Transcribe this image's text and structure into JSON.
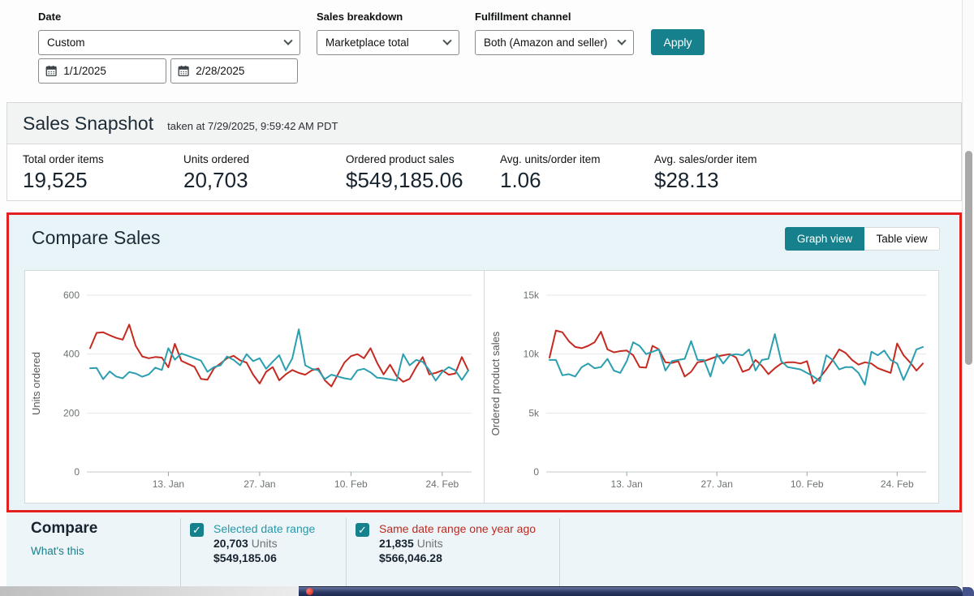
{
  "filters": {
    "date": {
      "label": "Date",
      "value": "Custom",
      "start_date": "1/1/2025",
      "end_date": "2/28/2025"
    },
    "sales_breakdown": {
      "label": "Sales breakdown",
      "value": "Marketplace total"
    },
    "fulfillment_channel": {
      "label": "Fulfillment channel",
      "value": "Both (Amazon and seller)"
    },
    "apply_label": "Apply"
  },
  "snapshot": {
    "title": "Sales Snapshot",
    "taken_at": "taken at 7/29/2025, 9:59:42 AM PDT",
    "metrics": [
      {
        "label": "Total order items",
        "value": "19,525"
      },
      {
        "label": "Units ordered",
        "value": "20,703"
      },
      {
        "label": "Ordered product sales",
        "value": "$549,185.06"
      },
      {
        "label": "Avg. units/order item",
        "value": "1.06"
      },
      {
        "label": "Avg. sales/order item",
        "value": "$28.13"
      }
    ]
  },
  "compare_sales": {
    "title": "Compare Sales",
    "graph_view_label": "Graph view",
    "table_view_label": "Table view"
  },
  "compare_legend": {
    "title": "Compare",
    "whats_this": "What's this",
    "checkmark": "✓",
    "items": [
      {
        "label": "Selected date range",
        "units": "20,703",
        "units_suffix": "Units",
        "sales": "$549,185.06",
        "label_color": "#2798a9",
        "checked": true
      },
      {
        "label": "Same date range one year ago",
        "units": "21,835",
        "units_suffix": "Units",
        "sales": "$566,046.28",
        "label_color": "#bb2a21",
        "checked": true
      }
    ]
  },
  "colors": {
    "accent_teal": "#17808d",
    "series_selected": "#2b9fb0",
    "series_year_ago": "#c52a21",
    "annotation_border": "#e32020",
    "panel_blue_bg": "#e9f4f8"
  },
  "chart_data": [
    {
      "type": "line",
      "title": "Units ordered (daily), selected range 1/1/2025–2/28/2025 vs same range one year ago",
      "ylabel": "Units ordered",
      "ylim": [
        0,
        600
      ],
      "y_ticks": [
        0,
        200,
        400,
        600
      ],
      "y_tick_labels": [
        "0",
        "200",
        "400",
        "600"
      ],
      "x_tick_labels": [
        "13. Jan",
        "27. Jan",
        "10. Feb",
        "24. Feb"
      ],
      "x_tick_indices": [
        12,
        26,
        40,
        54
      ],
      "grid": true,
      "legend_position": "none",
      "series": [
        {
          "name": "Same date range one year ago",
          "color": "#c52a21",
          "values": [
            420,
            472,
            474,
            464,
            455,
            449,
            500,
            428,
            392,
            386,
            390,
            388,
            355,
            435,
            377,
            367,
            357,
            316,
            313,
            352,
            368,
            386,
            394,
            379,
            371,
            330,
            300,
            340,
            356,
            311,
            331,
            346,
            336,
            330,
            345,
            351,
            311,
            290,
            331,
            371,
            393,
            400,
            386,
            420,
            371,
            331,
            364,
            326,
            306,
            316,
            356,
            390,
            331,
            336,
            345,
            330,
            334,
            390,
            344
          ]
        },
        {
          "name": "Selected date range",
          "color": "#2b9fb0",
          "values": [
            352,
            353,
            315,
            341,
            324,
            318,
            339,
            334,
            323,
            331,
            354,
            346,
            420,
            381,
            402,
            394,
            386,
            378,
            340,
            356,
            362,
            392,
            380,
            362,
            400,
            376,
            386,
            350,
            374,
            396,
            345,
            385,
            484,
            362,
            350,
            345,
            315,
            330,
            324,
            318,
            314,
            345,
            350,
            338,
            320,
            318,
            314,
            310,
            400,
            362,
            380,
            374,
            346,
            310,
            340,
            356,
            345,
            312,
            345
          ]
        }
      ]
    },
    {
      "type": "line",
      "title": "Ordered product sales (daily $), selected range 1/1/2025–2/28/2025 vs same range one year ago",
      "ylabel": "Ordered product sales",
      "ylim": [
        0,
        15000
      ],
      "y_ticks": [
        0,
        5000,
        10000,
        15000
      ],
      "y_tick_labels": [
        "0",
        "5k",
        "10k",
        "15k"
      ],
      "x_tick_labels": [
        "13. Jan",
        "27. Jan",
        "10. Feb",
        "24. Feb"
      ],
      "x_tick_indices": [
        12,
        26,
        40,
        54
      ],
      "grid": true,
      "legend_position": "none",
      "series": [
        {
          "name": "Same date range one year ago",
          "color": "#c52a21",
          "values": [
            9700,
            12000,
            11850,
            11100,
            10600,
            10500,
            10700,
            11000,
            11900,
            10400,
            10150,
            10250,
            10300,
            9900,
            8900,
            8850,
            10700,
            10400,
            9300,
            9250,
            9400,
            8100,
            8500,
            9300,
            9400,
            9600,
            9800,
            9900,
            10000,
            9700,
            8500,
            8700,
            9500,
            9000,
            8300,
            8800,
            9200,
            9300,
            9300,
            9200,
            9400,
            7500,
            8000,
            8700,
            9500,
            10400,
            10100,
            9500,
            9100,
            9300,
            9200,
            8800,
            8600,
            8400,
            10900,
            9900,
            9300,
            8600,
            9200
          ]
        },
        {
          "name": "Selected date range",
          "color": "#2b9fb0",
          "values": [
            9500,
            9500,
            8200,
            8300,
            8100,
            8900,
            9200,
            8800,
            8900,
            9600,
            8600,
            8400,
            9400,
            11000,
            10700,
            10000,
            10200,
            10400,
            8600,
            9400,
            9500,
            9600,
            11100,
            9500,
            9500,
            8100,
            10000,
            9200,
            9900,
            10000,
            9900,
            10400,
            8600,
            9500,
            9600,
            11700,
            9400,
            8900,
            8800,
            8700,
            8400,
            8100,
            7700,
            9900,
            9500,
            8700,
            8900,
            8900,
            8400,
            7400,
            10200,
            9900,
            10300,
            9500,
            9200,
            7800,
            9000,
            10400,
            10600
          ]
        }
      ]
    }
  ]
}
